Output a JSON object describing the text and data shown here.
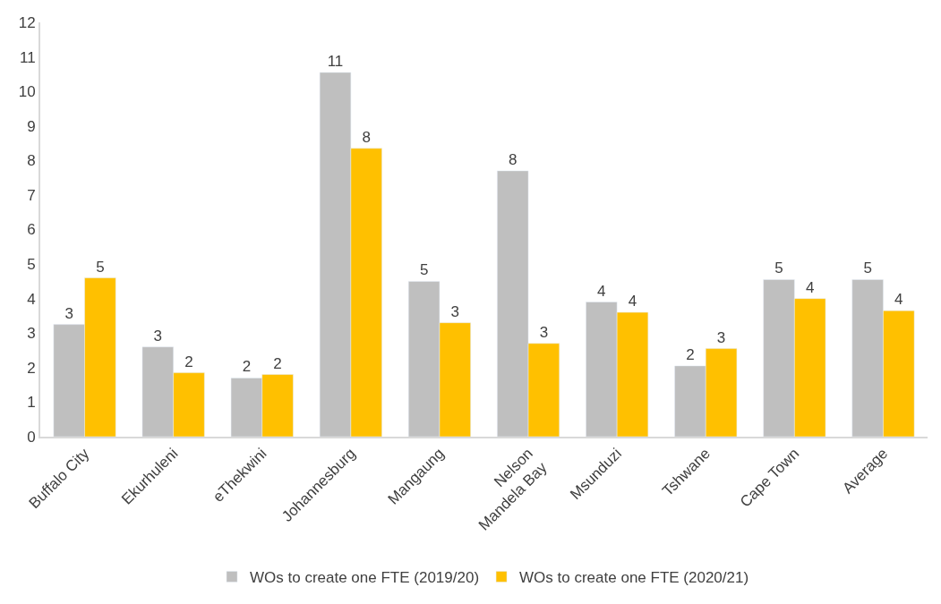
{
  "chart_data": {
    "type": "bar",
    "categories": [
      "Buffalo City",
      "Ekurhuleni",
      "eThekwini",
      "Johannesburg",
      "Mangaung",
      "Nelson\nMandela Bay",
      "Msunduzi",
      "Tshwane",
      "Cape Town",
      "Average"
    ],
    "series": [
      {
        "name": "WOs to create one FTE (2019/20)",
        "color": "#bfbfbf",
        "values": [
          3.25,
          2.6,
          1.7,
          10.55,
          4.5,
          7.7,
          3.9,
          2.05,
          4.55,
          4.55
        ],
        "value_labels": [
          "3",
          "3",
          "2",
          "11",
          "5",
          "8",
          "4",
          "2",
          "5",
          "5"
        ]
      },
      {
        "name": "WOs to create one FTE (2020/21)",
        "color": "#ffc000",
        "values": [
          4.6,
          1.85,
          1.8,
          8.35,
          3.3,
          2.7,
          3.6,
          2.55,
          4.0,
          3.65
        ],
        "value_labels": [
          "5",
          "2",
          "2",
          "8",
          "3",
          "3",
          "4",
          "3",
          "4",
          "4"
        ]
      }
    ],
    "ylim": [
      0,
      12
    ],
    "yticks": [
      0,
      1,
      2,
      3,
      4,
      5,
      6,
      7,
      8,
      9,
      10,
      11,
      12
    ],
    "legend": "bottom"
  }
}
